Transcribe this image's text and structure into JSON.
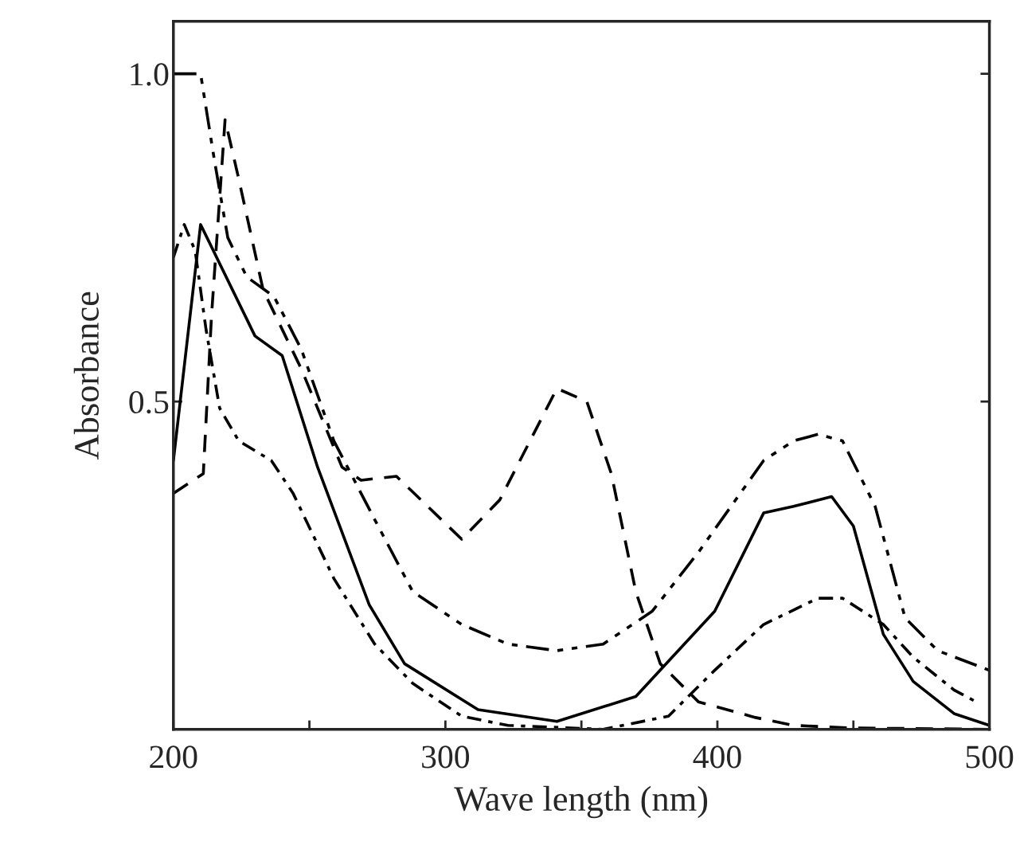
{
  "chart_data": {
    "type": "line",
    "xlabel": "Wave length (nm)",
    "ylabel": "Absorbance",
    "xlim": [
      200,
      500
    ],
    "ylim": [
      0,
      1.08
    ],
    "xticks": [
      200,
      {
        "value": 250,
        "label": null
      },
      300,
      {
        "value": 350,
        "label": null
      },
      400,
      {
        "value": 450,
        "label": null
      },
      500
    ],
    "yticks": [
      {
        "value": 0.5,
        "label": "0.5"
      },
      {
        "value": 1.0,
        "label": "1.0"
      }
    ],
    "grid": false,
    "legend": false,
    "marker": "none",
    "series": [
      {
        "color": "#000000",
        "line_style": "solid",
        "x": [
          200,
          210,
          230,
          240,
          253,
          272,
          285,
          312,
          341,
          370,
          399,
          417,
          428,
          442,
          450,
          461,
          472,
          487,
          500
        ],
        "values": [
          0.41,
          0.77,
          0.6,
          0.57,
          0.4,
          0.19,
          0.1,
          0.03,
          0.012,
          0.05,
          0.18,
          0.33,
          0.34,
          0.355,
          0.31,
          0.145,
          0.073,
          0.024,
          0.006
        ]
      },
      {
        "color": "#000000",
        "line_style": "dashed",
        "x": [
          200,
          211,
          214,
          219,
          224,
          233,
          247,
          262,
          269,
          282,
          291,
          306,
          320,
          341,
          352,
          361,
          370,
          379,
          393,
          414,
          428,
          450,
          500
        ],
        "values": [
          0.36,
          0.39,
          0.63,
          0.93,
          0.84,
          0.67,
          0.55,
          0.4,
          0.38,
          0.386,
          0.35,
          0.29,
          0.35,
          0.52,
          0.5,
          0.39,
          0.21,
          0.1,
          0.042,
          0.018,
          0.006,
          0.002,
          0.0
        ]
      },
      {
        "color": "#000000",
        "line_style": "dashdotdot",
        "x": [
          200,
          210,
          215,
          220,
          227,
          237,
          247,
          259,
          274,
          288,
          306,
          323,
          341,
          358,
          376,
          393,
          417,
          428,
          437,
          446,
          458,
          469,
          481,
          500
        ],
        "values": [
          1.0,
          1.0,
          0.87,
          0.75,
          0.69,
          0.66,
          0.58,
          0.44,
          0.32,
          0.21,
          0.16,
          0.13,
          0.12,
          0.13,
          0.18,
          0.27,
          0.41,
          0.44,
          0.45,
          0.44,
          0.34,
          0.17,
          0.12,
          0.09
        ]
      },
      {
        "color": "#000000",
        "line_style": "dashdot",
        "x": [
          200,
          204,
          208,
          212,
          217,
          224,
          236,
          244,
          259,
          274,
          288,
          306,
          323,
          358,
          382,
          399,
          417,
          437,
          446,
          461,
          472,
          487,
          496
        ],
        "values": [
          0.72,
          0.77,
          0.73,
          0.61,
          0.49,
          0.44,
          0.41,
          0.36,
          0.23,
          0.13,
          0.07,
          0.02,
          0.006,
          0.0,
          0.02,
          0.09,
          0.16,
          0.2,
          0.2,
          0.16,
          0.11,
          0.06,
          0.04
        ]
      }
    ]
  }
}
